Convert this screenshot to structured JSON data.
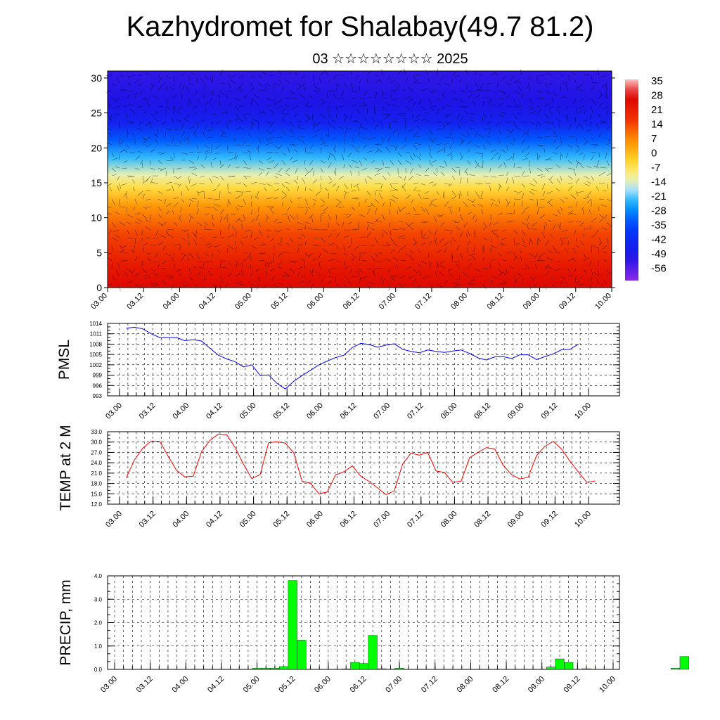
{
  "header": {
    "title": "Kazhydromet for Shalabay(49.7 81.2)",
    "subtitle": "03 ☆☆☆☆☆☆☆☆ 2025"
  },
  "colorbar": {
    "labels": [
      "35",
      "28",
      "21",
      "14",
      "7",
      "0",
      "-7",
      "-14",
      "-21",
      "-28",
      "-35",
      "-42",
      "-49",
      "-56"
    ]
  },
  "chart_data": [
    {
      "type": "heatmap",
      "name": "upper-air temperature cross-section with wind barbs",
      "x_ticks": [
        "03.00",
        "03.12",
        "04.00",
        "04.12",
        "05.00",
        "05.12",
        "06.00",
        "06.12",
        "07.00",
        "07.12",
        "08.00",
        "08.12",
        "09.00",
        "09.12",
        "10.00"
      ],
      "y_ticks": [
        "0",
        "5",
        "10",
        "15",
        "20",
        "25",
        "30"
      ],
      "ylim": [
        0,
        31
      ],
      "color_scale": {
        "min": -56,
        "max": 35,
        "colormap": "rainbow (purple-blue-cyan-yellow-red)"
      }
    },
    {
      "type": "line",
      "ylabel": "PMSL",
      "color": "#0000ff",
      "x_ticks": [
        "03.00",
        "03.12",
        "04.00",
        "04.12",
        "05.00",
        "05.12",
        "06.00",
        "06.12",
        "07.00",
        "07.12",
        "08.00",
        "08.12",
        "09.00",
        "09.12",
        "10.00"
      ],
      "y_ticks": [
        "993",
        "996",
        "999",
        "1002",
        "1005",
        "1008",
        "1011",
        "1014"
      ],
      "ylim": [
        993,
        1014
      ],
      "grid": true,
      "values": [
        1012.6,
        1012.9,
        1012.4,
        1011.0,
        1009.9,
        1009.9,
        1009.9,
        1009.0,
        1009.3,
        1008.9,
        1006.8,
        1004.8,
        1003.7,
        1002.9,
        1001.4,
        1002.0,
        998.9,
        999.1,
        996.6,
        995.0,
        997.2,
        998.9,
        1000.4,
        1002.0,
        1003.1,
        1004.1,
        1004.8,
        1007.0,
        1008.2,
        1007.9,
        1007.1,
        1007.7,
        1008.1,
        1006.5,
        1005.9,
        1005.5,
        1006.3,
        1005.9,
        1005.6,
        1006.0,
        1006.3,
        1005.3,
        1004.0,
        1003.4,
        1004.3,
        1004.4,
        1003.8,
        1004.9,
        1004.9,
        1003.5,
        1004.4,
        1005.2,
        1006.4,
        1006.5,
        1008.0
      ],
      "x_start_tick": 0.2,
      "x_step_ticks": 0.25
    },
    {
      "type": "line",
      "ylabel": "TEMP at 2 M",
      "color": "#ff0000",
      "x_ticks": [
        "03.00",
        "03.12",
        "04.00",
        "04.12",
        "05.00",
        "05.12",
        "06.00",
        "06.12",
        "07.00",
        "07.12",
        "08.00",
        "08.12",
        "09.00",
        "09.12",
        "10.00"
      ],
      "y_ticks": [
        "12.0",
        "15.0",
        "18.0",
        "21.0",
        "24.0",
        "27.0",
        "30.0",
        "33.0"
      ],
      "ylim": [
        12,
        33
      ],
      "grid": true,
      "values": [
        19.6,
        24.9,
        28.3,
        30.3,
        30.2,
        25.9,
        21.8,
        19.9,
        20.1,
        27.2,
        30.5,
        32.3,
        32.1,
        28.4,
        23.6,
        19.4,
        20.6,
        29.8,
        30.1,
        29.7,
        26.9,
        18.6,
        18.1,
        15.0,
        15.5,
        20.5,
        21.4,
        23.1,
        20.1,
        18.6,
        16.7,
        14.8,
        15.8,
        23.6,
        26.8,
        26.2,
        27.0,
        21.6,
        21.2,
        18.3,
        18.7,
        25.5,
        27.0,
        28.4,
        28.0,
        23.3,
        20.6,
        19.3,
        19.8,
        26.1,
        28.8,
        30.2,
        27.9,
        24.4,
        21.3,
        18.3,
        18.7
      ],
      "x_start_tick": 0.2,
      "x_step_ticks": 0.25
    },
    {
      "type": "bar",
      "ylabel": "PRECIP, mm",
      "color": "#00ff00",
      "x_ticks": [
        "03.00",
        "03.12",
        "04.00",
        "04.12",
        "05.00",
        "05.12",
        "06.00",
        "06.12",
        "07.00",
        "07.12",
        "08.00",
        "08.12",
        "09.00",
        "09.12",
        "10.00"
      ],
      "y_ticks": [
        "0.0",
        "1.0",
        "2.0",
        "3.0",
        "4.0"
      ],
      "ylim": [
        0,
        4
      ],
      "grid": true,
      "bars": [
        {
          "tick": 4.0,
          "value": 0.05
        },
        {
          "tick": 4.25,
          "value": 0.05
        },
        {
          "tick": 4.5,
          "value": 0.05
        },
        {
          "tick": 4.75,
          "value": 0.12
        },
        {
          "tick": 5.0,
          "value": 3.8
        },
        {
          "tick": 5.25,
          "value": 1.25
        },
        {
          "tick": 6.5,
          "value": 0.02
        },
        {
          "tick": 6.75,
          "value": 0.3
        },
        {
          "tick": 7.0,
          "value": 0.25
        },
        {
          "tick": 7.25,
          "value": 1.45
        },
        {
          "tick": 7.5,
          "value": 0.03
        },
        {
          "tick": 8.0,
          "value": 0.05
        },
        {
          "tick": 12.25,
          "value": 0.1
        },
        {
          "tick": 12.5,
          "value": 0.45
        },
        {
          "tick": 12.75,
          "value": 0.3
        },
        {
          "tick": 13.25,
          "value": 0.03
        },
        {
          "tick": 15.75,
          "value": 0.05
        },
        {
          "tick": 16.0,
          "value": 0.55
        }
      ]
    }
  ]
}
